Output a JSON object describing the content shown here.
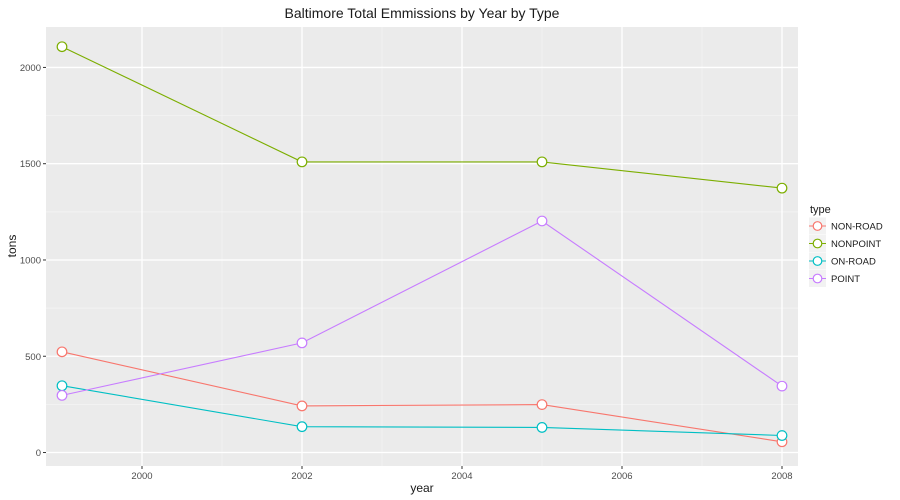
{
  "chart_data": {
    "type": "line",
    "title": "Baltimore Total Emmissions by Year by Type",
    "xlabel": "year",
    "ylabel": "tons",
    "x": [
      1999,
      2002,
      2005,
      2008
    ],
    "xlim": [
      1998.8,
      2008.2
    ],
    "ylim": [
      -70,
      2210
    ],
    "xticks": [
      2000,
      2002,
      2004,
      2006,
      2008
    ],
    "yticks": [
      0,
      500,
      1000,
      1500,
      2000
    ],
    "grid": true,
    "legend": {
      "title": "type",
      "placement": "right"
    },
    "series": [
      {
        "name": "NON-ROAD",
        "color": "#f8766d",
        "values": [
          522.9,
          242.0,
          248.9,
          55.8
        ]
      },
      {
        "name": "NONPOINT",
        "color": "#7cae00",
        "values": [
          2107.6,
          1509.5,
          1509.5,
          1373.2
        ]
      },
      {
        "name": "ON-ROAD",
        "color": "#00bfc4",
        "values": [
          346.8,
          134.3,
          130.4,
          88.3
        ]
      },
      {
        "name": "POINT",
        "color": "#c77cff",
        "values": [
          296.8,
          569.3,
          1202.5,
          344.98
        ]
      }
    ]
  },
  "colors": {
    "panel_bg": "#ebebeb",
    "grid_major": "#ffffff",
    "grid_minor": "#f5f5f5"
  }
}
